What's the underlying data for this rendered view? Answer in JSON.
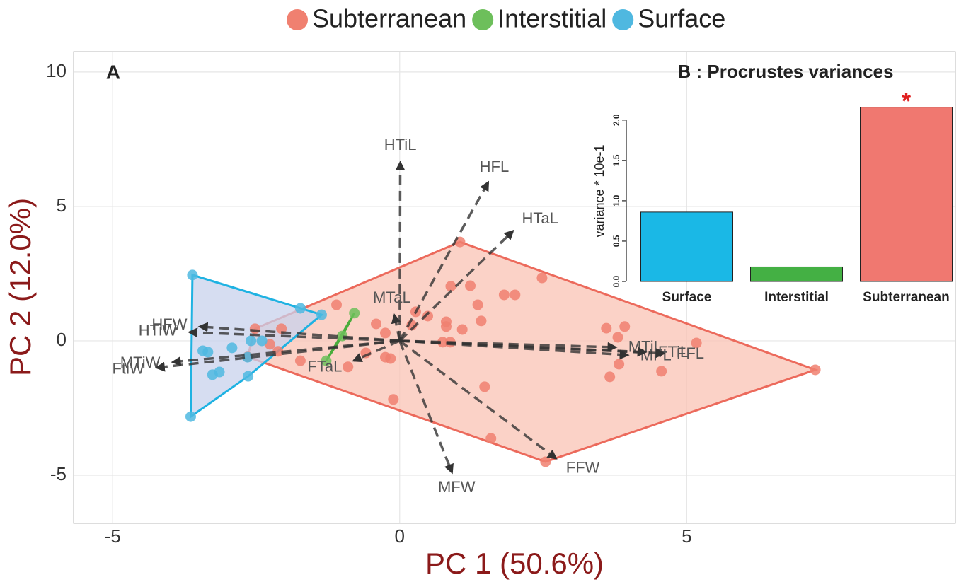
{
  "chart_data": [
    {
      "type": "scatter",
      "panel_label": "A",
      "x_label": "PC 1 (50.6%)",
      "y_label": "PC 2 (12.0%)",
      "xlim": [
        -5.68,
        9.68
      ],
      "ylim": [
        -6.79,
        10.76
      ],
      "xticks": [
        -5,
        0,
        5
      ],
      "yticks": [
        -5,
        0,
        5,
        10
      ],
      "grid": true,
      "legend": "top",
      "series": [
        {
          "name": "Subterranean",
          "color": "#f08070",
          "hull_fill": "#f9c3b4",
          "hull_stroke": "#ec6a5c",
          "x": [
            1.05,
            7.24,
            2.54,
            -2.65,
            -2.52,
            -2.26,
            -2.06,
            -2.12,
            -1.73,
            -1.1,
            -0.9,
            -0.41,
            -0.25,
            -0.59,
            -0.25,
            -0.16,
            -0.11,
            0.21,
            0.28,
            0.49,
            0.81,
            0.81,
            0.75,
            0.88,
            1.09,
            0.89,
            1.23,
            1.36,
            1.42,
            1.48,
            1.59,
            1.82,
            2.01,
            2.48,
            3.6,
            3.8,
            3.92,
            3.82,
            3.66,
            4.56,
            5.17
          ],
          "values": [
            3.68,
            -1.08,
            -4.5,
            -0.6,
            0.45,
            -0.13,
            0.45,
            -0.39,
            -0.74,
            1.34,
            -0.97,
            0.63,
            0.29,
            -0.45,
            -0.61,
            -0.66,
            -2.18,
            0.58,
            1.08,
            0.92,
            0.71,
            0.53,
            -0.05,
            -0.05,
            0.42,
            2.03,
            2.05,
            1.34,
            0.74,
            -1.71,
            -3.63,
            1.71,
            1.71,
            2.34,
            0.47,
            0.13,
            0.53,
            -0.87,
            -1.34,
            -1.13,
            -0.08
          ]
        },
        {
          "name": "Interstitial",
          "color": "#6dbf5b",
          "hull_fill": "#b6e0ab",
          "hull_stroke": "#4aad3c",
          "x": [
            -1.28,
            -1.0,
            -0.79
          ],
          "values": [
            -0.74,
            0.18,
            1.03
          ]
        },
        {
          "name": "Surface",
          "color": "#4fb8e0",
          "hull_fill": "#c8d2ec",
          "hull_stroke": "#1fb2e2",
          "x": [
            -3.61,
            -3.64,
            -1.73,
            -1.36,
            -3.43,
            -3.34,
            -2.92,
            -3.26,
            -3.14,
            -2.65,
            -2.64,
            -2.59,
            -2.4
          ],
          "values": [
            2.45,
            -2.82,
            1.21,
            0.97,
            -0.37,
            -0.42,
            -0.26,
            -1.26,
            -1.16,
            -0.61,
            -1.32,
            0.0,
            0.0
          ]
        }
      ],
      "vectors": {
        "labels": [
          "HTiL",
          "HFL",
          "HTaL",
          "MTaL",
          "FTaL",
          "HFW",
          "HTiW",
          "MTiW",
          "FtiW",
          "MTiL",
          "MFL",
          "FTiL",
          "FFL",
          "FFW",
          "MFW"
        ],
        "x": [
          0.01,
          1.54,
          1.97,
          -0.09,
          -0.8,
          -3.48,
          -3.66,
          -3.95,
          -4.23,
          3.76,
          3.97,
          4.28,
          4.6,
          2.72,
          0.91
        ],
        "values": [
          6.63,
          5.89,
          4.08,
          0.95,
          -0.74,
          0.53,
          0.32,
          -0.79,
          -1.0,
          -0.24,
          -0.53,
          -0.42,
          -0.47,
          -4.37,
          -4.89
        ]
      }
    },
    {
      "type": "bar",
      "title": "B : Procrustes variances",
      "y_label": "variance * 10e-1",
      "categories": [
        "Surface",
        "Interstitial",
        "Subterranean"
      ],
      "values": [
        0.86,
        0.18,
        2.16
      ],
      "colors": [
        "#1ab8e6",
        "#44b044",
        "#f07870"
      ],
      "ylim": [
        0,
        2.2
      ],
      "yticks": [
        {
          "value": 0,
          "label": "0.0"
        },
        {
          "value": 0.5,
          "label": "0.5"
        },
        {
          "value": 1,
          "label": "1.0"
        },
        {
          "value": 1.5,
          "label": "1.5"
        },
        {
          "value": 2,
          "label": "2.0"
        }
      ],
      "annotation": "*",
      "annotation_color": "#e02020"
    }
  ]
}
